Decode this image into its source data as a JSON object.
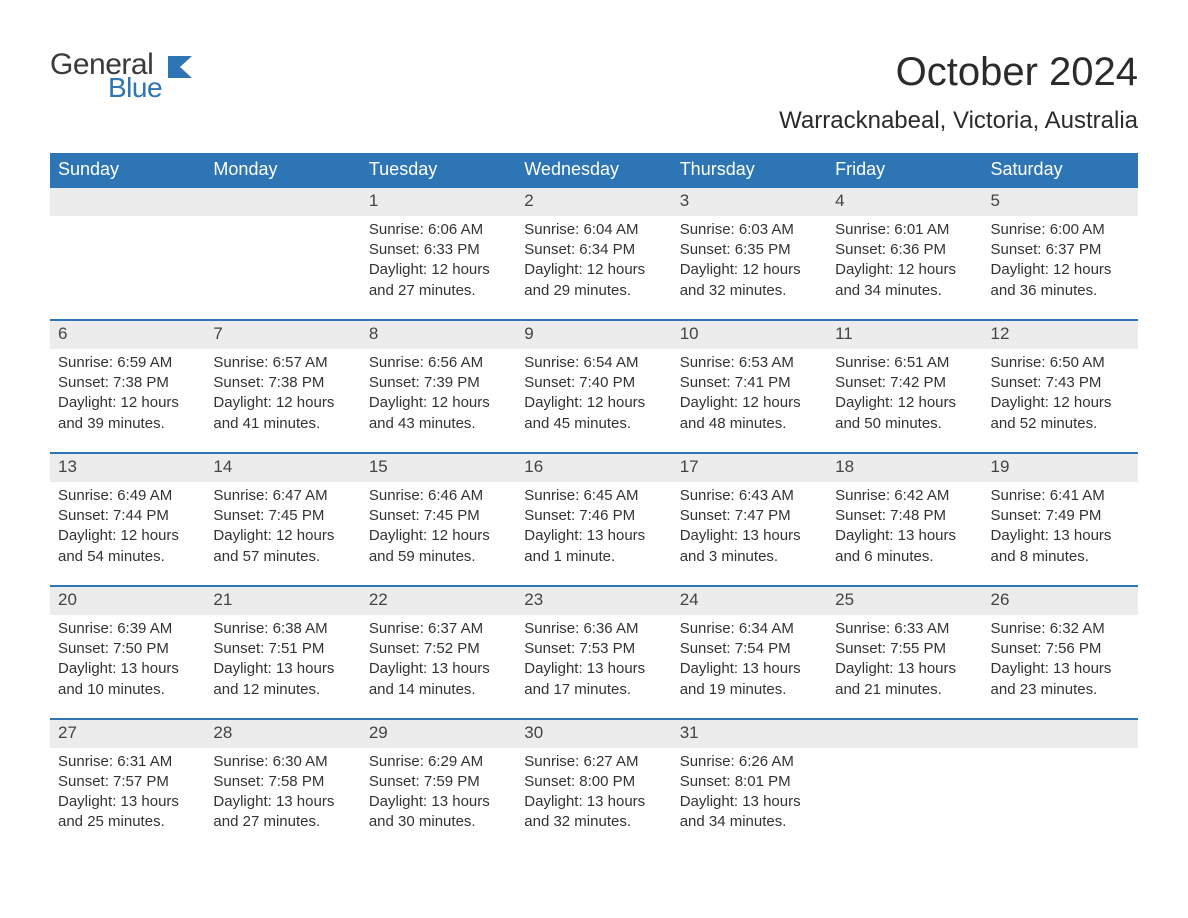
{
  "logo": {
    "word1": "General",
    "word2": "Blue",
    "flag_color": "#2e75b6"
  },
  "header": {
    "month_title": "October 2024",
    "location": "Warracknabeal, Victoria, Australia"
  },
  "colors": {
    "header_bar": "#2e75b6",
    "daynum_bg": "#ececec",
    "text": "#333333",
    "background": "#ffffff",
    "week_border": "#2e75b6"
  },
  "weekdays": [
    "Sunday",
    "Monday",
    "Tuesday",
    "Wednesday",
    "Thursday",
    "Friday",
    "Saturday"
  ],
  "weeks": [
    [
      {
        "n": "",
        "empty": true
      },
      {
        "n": "",
        "empty": true
      },
      {
        "n": "1",
        "sunrise": "Sunrise: 6:06 AM",
        "sunset": "Sunset: 6:33 PM",
        "daylight": "Daylight: 12 hours and 27 minutes."
      },
      {
        "n": "2",
        "sunrise": "Sunrise: 6:04 AM",
        "sunset": "Sunset: 6:34 PM",
        "daylight": "Daylight: 12 hours and 29 minutes."
      },
      {
        "n": "3",
        "sunrise": "Sunrise: 6:03 AM",
        "sunset": "Sunset: 6:35 PM",
        "daylight": "Daylight: 12 hours and 32 minutes."
      },
      {
        "n": "4",
        "sunrise": "Sunrise: 6:01 AM",
        "sunset": "Sunset: 6:36 PM",
        "daylight": "Daylight: 12 hours and 34 minutes."
      },
      {
        "n": "5",
        "sunrise": "Sunrise: 6:00 AM",
        "sunset": "Sunset: 6:37 PM",
        "daylight": "Daylight: 12 hours and 36 minutes."
      }
    ],
    [
      {
        "n": "6",
        "sunrise": "Sunrise: 6:59 AM",
        "sunset": "Sunset: 7:38 PM",
        "daylight": "Daylight: 12 hours and 39 minutes."
      },
      {
        "n": "7",
        "sunrise": "Sunrise: 6:57 AM",
        "sunset": "Sunset: 7:38 PM",
        "daylight": "Daylight: 12 hours and 41 minutes."
      },
      {
        "n": "8",
        "sunrise": "Sunrise: 6:56 AM",
        "sunset": "Sunset: 7:39 PM",
        "daylight": "Daylight: 12 hours and 43 minutes."
      },
      {
        "n": "9",
        "sunrise": "Sunrise: 6:54 AM",
        "sunset": "Sunset: 7:40 PM",
        "daylight": "Daylight: 12 hours and 45 minutes."
      },
      {
        "n": "10",
        "sunrise": "Sunrise: 6:53 AM",
        "sunset": "Sunset: 7:41 PM",
        "daylight": "Daylight: 12 hours and 48 minutes."
      },
      {
        "n": "11",
        "sunrise": "Sunrise: 6:51 AM",
        "sunset": "Sunset: 7:42 PM",
        "daylight": "Daylight: 12 hours and 50 minutes."
      },
      {
        "n": "12",
        "sunrise": "Sunrise: 6:50 AM",
        "sunset": "Sunset: 7:43 PM",
        "daylight": "Daylight: 12 hours and 52 minutes."
      }
    ],
    [
      {
        "n": "13",
        "sunrise": "Sunrise: 6:49 AM",
        "sunset": "Sunset: 7:44 PM",
        "daylight": "Daylight: 12 hours and 54 minutes."
      },
      {
        "n": "14",
        "sunrise": "Sunrise: 6:47 AM",
        "sunset": "Sunset: 7:45 PM",
        "daylight": "Daylight: 12 hours and 57 minutes."
      },
      {
        "n": "15",
        "sunrise": "Sunrise: 6:46 AM",
        "sunset": "Sunset: 7:45 PM",
        "daylight": "Daylight: 12 hours and 59 minutes."
      },
      {
        "n": "16",
        "sunrise": "Sunrise: 6:45 AM",
        "sunset": "Sunset: 7:46 PM",
        "daylight": "Daylight: 13 hours and 1 minute."
      },
      {
        "n": "17",
        "sunrise": "Sunrise: 6:43 AM",
        "sunset": "Sunset: 7:47 PM",
        "daylight": "Daylight: 13 hours and 3 minutes."
      },
      {
        "n": "18",
        "sunrise": "Sunrise: 6:42 AM",
        "sunset": "Sunset: 7:48 PM",
        "daylight": "Daylight: 13 hours and 6 minutes."
      },
      {
        "n": "19",
        "sunrise": "Sunrise: 6:41 AM",
        "sunset": "Sunset: 7:49 PM",
        "daylight": "Daylight: 13 hours and 8 minutes."
      }
    ],
    [
      {
        "n": "20",
        "sunrise": "Sunrise: 6:39 AM",
        "sunset": "Sunset: 7:50 PM",
        "daylight": "Daylight: 13 hours and 10 minutes."
      },
      {
        "n": "21",
        "sunrise": "Sunrise: 6:38 AM",
        "sunset": "Sunset: 7:51 PM",
        "daylight": "Daylight: 13 hours and 12 minutes."
      },
      {
        "n": "22",
        "sunrise": "Sunrise: 6:37 AM",
        "sunset": "Sunset: 7:52 PM",
        "daylight": "Daylight: 13 hours and 14 minutes."
      },
      {
        "n": "23",
        "sunrise": "Sunrise: 6:36 AM",
        "sunset": "Sunset: 7:53 PM",
        "daylight": "Daylight: 13 hours and 17 minutes."
      },
      {
        "n": "24",
        "sunrise": "Sunrise: 6:34 AM",
        "sunset": "Sunset: 7:54 PM",
        "daylight": "Daylight: 13 hours and 19 minutes."
      },
      {
        "n": "25",
        "sunrise": "Sunrise: 6:33 AM",
        "sunset": "Sunset: 7:55 PM",
        "daylight": "Daylight: 13 hours and 21 minutes."
      },
      {
        "n": "26",
        "sunrise": "Sunrise: 6:32 AM",
        "sunset": "Sunset: 7:56 PM",
        "daylight": "Daylight: 13 hours and 23 minutes."
      }
    ],
    [
      {
        "n": "27",
        "sunrise": "Sunrise: 6:31 AM",
        "sunset": "Sunset: 7:57 PM",
        "daylight": "Daylight: 13 hours and 25 minutes."
      },
      {
        "n": "28",
        "sunrise": "Sunrise: 6:30 AM",
        "sunset": "Sunset: 7:58 PM",
        "daylight": "Daylight: 13 hours and 27 minutes."
      },
      {
        "n": "29",
        "sunrise": "Sunrise: 6:29 AM",
        "sunset": "Sunset: 7:59 PM",
        "daylight": "Daylight: 13 hours and 30 minutes."
      },
      {
        "n": "30",
        "sunrise": "Sunrise: 6:27 AM",
        "sunset": "Sunset: 8:00 PM",
        "daylight": "Daylight: 13 hours and 32 minutes."
      },
      {
        "n": "31",
        "sunrise": "Sunrise: 6:26 AM",
        "sunset": "Sunset: 8:01 PM",
        "daylight": "Daylight: 13 hours and 34 minutes."
      },
      {
        "n": "",
        "empty": true
      },
      {
        "n": "",
        "empty": true
      }
    ]
  ]
}
